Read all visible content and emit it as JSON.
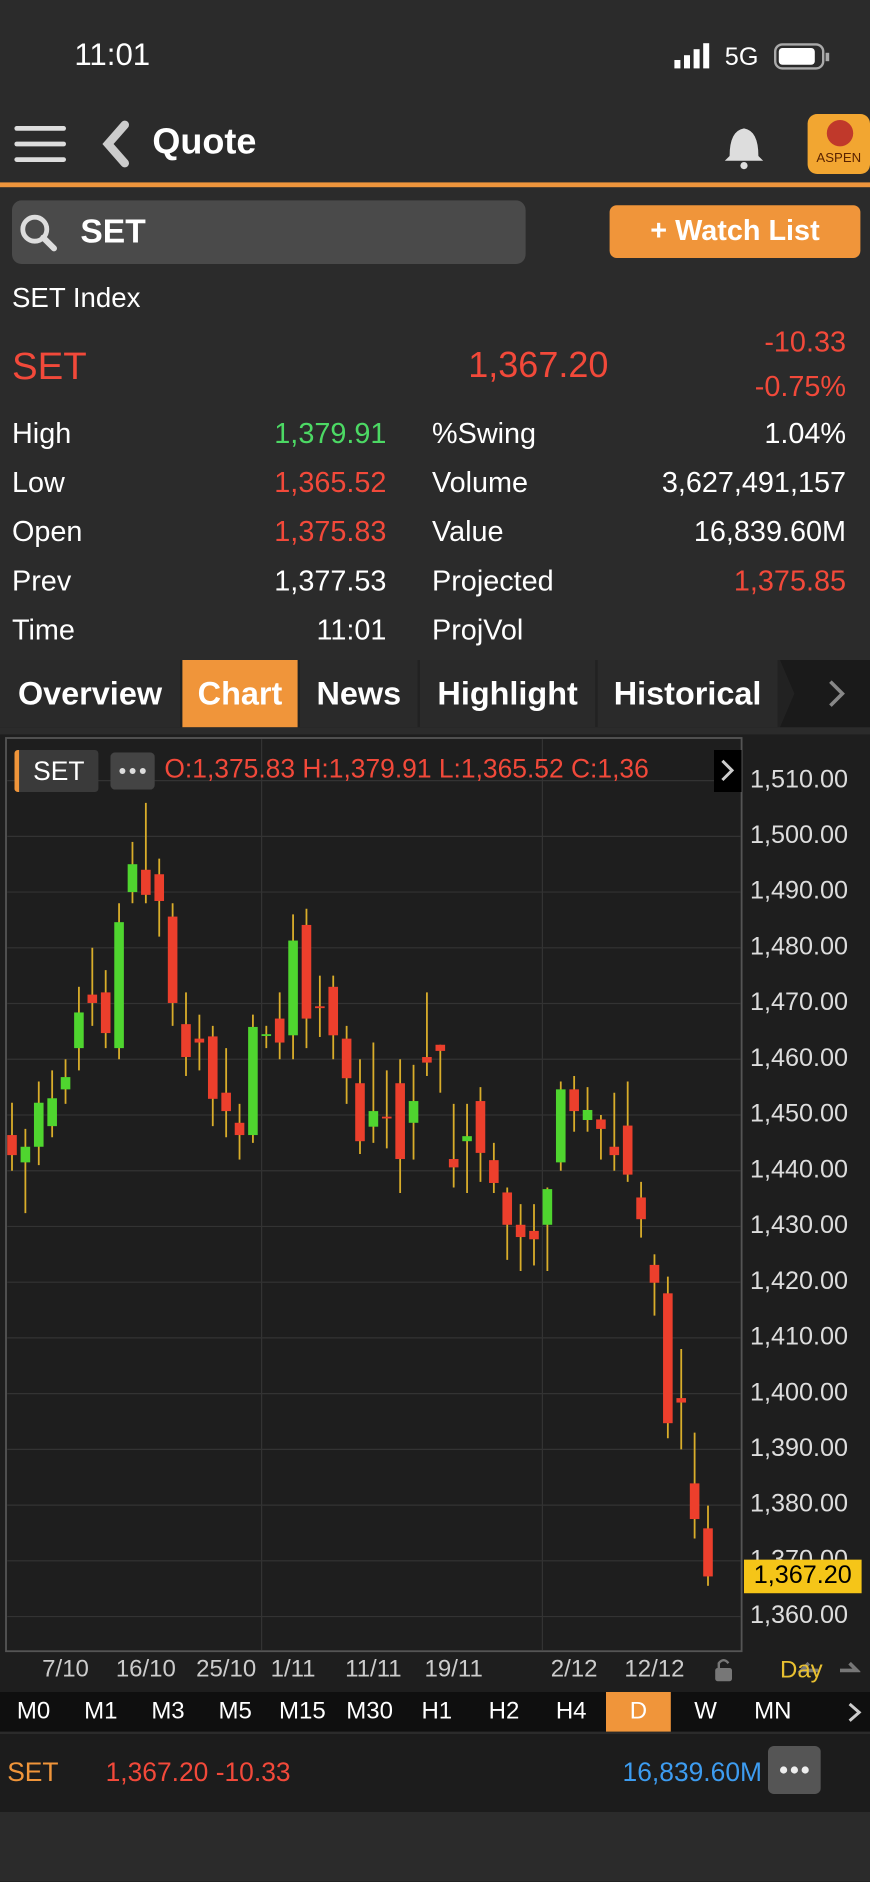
{
  "status": {
    "time": "11:01",
    "network": "5G"
  },
  "header": {
    "title": "Quote",
    "logo": "ASPEN"
  },
  "search": {
    "query": "SET",
    "button": "+ Watch List"
  },
  "quote": {
    "name": "SET Index",
    "symbol": "SET",
    "last": "1,367.20",
    "change": "-10.33",
    "change_pct": "-0.75%",
    "stats_left": [
      {
        "label": "High",
        "value": "1,379.91"
      },
      {
        "label": "Low",
        "value": "1,365.52"
      },
      {
        "label": "Open",
        "value": "1,375.83"
      },
      {
        "label": "Prev",
        "value": "1,377.53"
      },
      {
        "label": "Time",
        "value": "11:01"
      }
    ],
    "stats_right": [
      {
        "label": "%Swing",
        "value": "1.04%"
      },
      {
        "label": "Volume",
        "value": "3,627,491,157"
      },
      {
        "label": "Value",
        "value": "16,839.60M"
      },
      {
        "label": "Projected",
        "value": "1,375.85"
      },
      {
        "label": "ProjVol"
      }
    ]
  },
  "tabs": [
    "Overview",
    "Chart",
    "News",
    "Highlight",
    "Historical"
  ],
  "active_tab": 1,
  "chart_data": {
    "type": "candlestick",
    "symbol": "SET",
    "ohlc_text": "O:1,375.83 H:1,379.91 L:1,365.52 C:1,36",
    "up_color": "#4fd52f",
    "down_color": "#ec3f2c",
    "wick_color": "#d9ad2a",
    "categories": [
      null,
      null,
      null,
      null,
      "7/10",
      null,
      null,
      null,
      null,
      null,
      "16/10",
      null,
      null,
      null,
      null,
      null,
      "25/10",
      null,
      null,
      null,
      null,
      "1/11",
      null,
      null,
      null,
      null,
      null,
      "11/11",
      null,
      null,
      null,
      null,
      null,
      "19/11",
      null,
      null,
      null,
      null,
      null,
      null,
      null,
      null,
      "2/12",
      null,
      null,
      null,
      null,
      null,
      "12/12",
      null,
      null,
      null,
      null
    ],
    "open": [
      1446.4,
      1441.5,
      1444.3,
      1448,
      1454.6,
      1462,
      1471.6,
      1472,
      1462,
      1490,
      1494,
      1493.2,
      1485.6,
      1466.3,
      1463.7,
      1464.1,
      1454,
      1448.6,
      1446.4,
      1464.3,
      1467.3,
      1464.3,
      1484.1,
      1469.5,
      1473,
      1463.7,
      1455.7,
      1447.9,
      1449.7,
      1455.7,
      1448.6,
      1460.4,
      1462.6,
      1442.1,
      1445.3,
      1452.5,
      1441.9,
      1436.1,
      1430.3,
      1429.2,
      1430.3,
      1441.5,
      1454.6,
      1449.1,
      1449.2,
      1444.3,
      1448.1,
      1435.2,
      1423.1,
      1418,
      1399.2,
      1383.9,
      1375.83
    ],
    "high": [
      1452.2,
      1447.5,
      1456,
      1458,
      1460,
      1473,
      1480,
      1476,
      1488,
      1499,
      1506,
      1496,
      1488,
      1472,
      1468,
      1466,
      1462,
      1452,
      1468,
      1466,
      1472,
      1486,
      1487,
      1475,
      1475,
      1466,
      1460,
      1463,
      1458,
      1460,
      1459,
      1472,
      1462.6,
      1452,
      1452,
      1455,
      1445,
      1437,
      1434,
      1434,
      1437,
      1456,
      1457,
      1455,
      1450,
      1454,
      1456,
      1438,
      1425,
      1421,
      1408,
      1393,
      1379.91
    ],
    "low": [
      1440,
      1432.4,
      1441,
      1446,
      1452,
      1458,
      1466,
      1462,
      1460,
      1488,
      1488,
      1482,
      1466,
      1457,
      1458,
      1448,
      1446,
      1442,
      1445,
      1462,
      1460,
      1460,
      1462,
      1464,
      1460,
      1452,
      1443,
      1445,
      1444,
      1436,
      1442,
      1457,
      1454,
      1437,
      1436,
      1438,
      1436,
      1424,
      1422,
      1423,
      1422,
      1440,
      1447,
      1447,
      1442,
      1440,
      1438,
      1428,
      1414,
      1392,
      1390,
      1374,
      1365.52
    ],
    "close": [
      1442.8,
      1444.3,
      1452.2,
      1453,
      1456.8,
      1468.4,
      1470.1,
      1464.7,
      1484.6,
      1495,
      1489.5,
      1488.4,
      1470.1,
      1460.4,
      1463,
      1452.9,
      1450.7,
      1446.4,
      1465.8,
      1464.5,
      1463,
      1481.3,
      1467.3,
      1469.3,
      1464.3,
      1456.6,
      1445.3,
      1450.7,
      1449.5,
      1442.1,
      1452.5,
      1459.4,
      1461.5,
      1440.6,
      1446.2,
      1443.2,
      1437.8,
      1430.3,
      1428.1,
      1427.7,
      1436.7,
      1454.6,
      1450.7,
      1450.9,
      1447.5,
      1442.8,
      1439.3,
      1431.3,
      1419.9,
      1394.7,
      1398.4,
      1377.5,
      1367.2
    ],
    "ylim": [
      1354,
      1517
    ],
    "yticks": [
      {
        "value": 1360,
        "label": "1,360.00"
      },
      {
        "value": 1370,
        "label": "1,370.00"
      },
      {
        "value": 1380,
        "label": "1,380.00"
      },
      {
        "value": 1390,
        "label": "1,390.00"
      },
      {
        "value": 1400,
        "label": "1,400.00"
      },
      {
        "value": 1410,
        "label": "1,410.00"
      },
      {
        "value": 1420,
        "label": "1,420.00"
      },
      {
        "value": 1430,
        "label": "1,430.00"
      },
      {
        "value": 1440,
        "label": "1,440.00"
      },
      {
        "value": 1450,
        "label": "1,450.00"
      },
      {
        "value": 1460,
        "label": "1,460.00"
      },
      {
        "value": 1470,
        "label": "1,470.00"
      },
      {
        "value": 1480,
        "label": "1,480.00"
      },
      {
        "value": 1490,
        "label": "1,490.00"
      },
      {
        "value": 1500,
        "label": "1,500.00"
      },
      {
        "value": 1510,
        "label": "1,510.00"
      }
    ],
    "grid": true,
    "last_price": {
      "value": 1367.2,
      "label": "1,367.20"
    },
    "period": "Day"
  },
  "timeframes": [
    "M0",
    "M1",
    "M3",
    "M5",
    "M15",
    "M30",
    "H1",
    "H2",
    "H4",
    "D",
    "W",
    "MN"
  ],
  "active_timeframe": 9,
  "footer": {
    "symbol": "SET",
    "price": "1,367.20 -10.33",
    "value": "16,839.60M"
  }
}
